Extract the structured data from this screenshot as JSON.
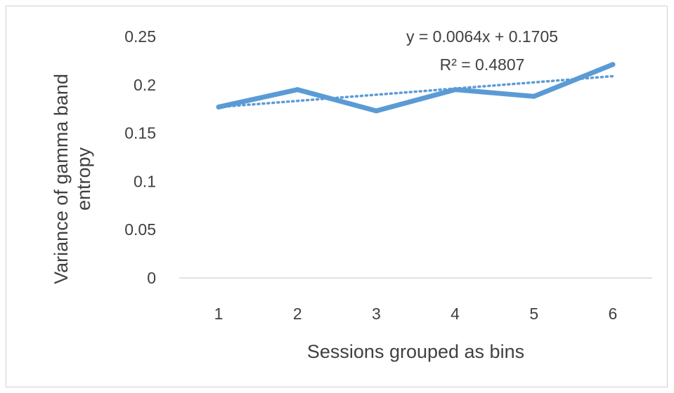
{
  "chart_data": {
    "type": "line",
    "title": "",
    "xlabel": "Sessions grouped as bins",
    "ylabel_lines": [
      "Variance of gamma band",
      "entropy"
    ],
    "categories": [
      "1",
      "2",
      "3",
      "4",
      "5",
      "6"
    ],
    "series": [
      {
        "values": [
          0.177,
          0.195,
          0.173,
          0.195,
          0.188,
          0.221
        ],
        "color": "#5b9bd5"
      }
    ],
    "trendline": {
      "type": "linear",
      "slope": 0.0064,
      "intercept": 0.1705,
      "style": "dotted",
      "color": "#5b9bd5",
      "equation_label": "y = 0.0064x + 0.1705",
      "r2_label": "R² = 0.4807"
    },
    "yticks": [
      "0",
      "0.05",
      "0.1",
      "0.15",
      "0.2",
      "0.25"
    ],
    "ytick_values": [
      0,
      0.05,
      0.1,
      0.15,
      0.2,
      0.25
    ],
    "ylim": [
      0,
      0.25
    ],
    "grid": false,
    "legend": "none"
  }
}
